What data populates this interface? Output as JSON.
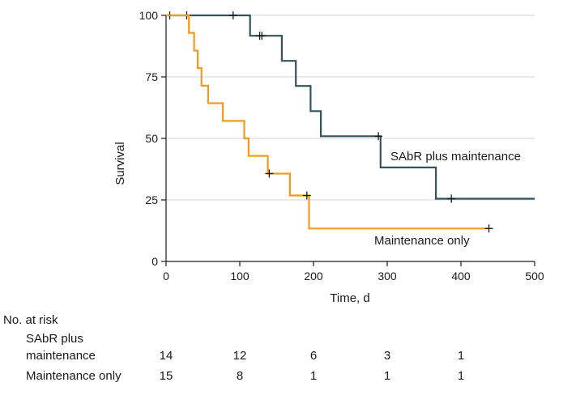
{
  "chart_data": {
    "type": "line",
    "subtype": "kaplan-meier step",
    "xlabel": "Time, d",
    "ylabel": "Survival",
    "xlim": [
      0,
      500
    ],
    "ylim": [
      0,
      100
    ],
    "xticks": [
      "0",
      "100",
      "200",
      "300",
      "400",
      "500"
    ],
    "yticks": [
      "0",
      "25",
      "50",
      "75",
      "100"
    ],
    "grid": "horizontal",
    "series": [
      {
        "name": "SAbR plus maintenance",
        "color": "#35525f",
        "steps": [
          [
            0,
            100
          ],
          [
            114,
            100
          ],
          [
            114,
            91.7
          ],
          [
            157,
            91.7
          ],
          [
            157,
            81.5
          ],
          [
            176,
            81.5
          ],
          [
            176,
            71.3
          ],
          [
            196,
            71.3
          ],
          [
            196,
            61.1
          ],
          [
            210,
            61.1
          ],
          [
            210,
            50.9
          ],
          [
            291,
            50.9
          ],
          [
            291,
            38.2
          ],
          [
            366,
            38.2
          ],
          [
            366,
            25.5
          ],
          [
            500,
            25.5
          ]
        ],
        "censored": [
          [
            5,
            100
          ],
          [
            28,
            100
          ],
          [
            91,
            100
          ],
          [
            127,
            91.7
          ],
          [
            130,
            91.7
          ],
          [
            288,
            50.9
          ],
          [
            387,
            25.5
          ]
        ]
      },
      {
        "name": "Maintenance only",
        "color": "#f59a1c",
        "steps": [
          [
            0,
            100
          ],
          [
            31,
            100
          ],
          [
            31,
            92.9
          ],
          [
            38,
            92.9
          ],
          [
            38,
            85.7
          ],
          [
            43,
            85.7
          ],
          [
            43,
            78.6
          ],
          [
            48,
            78.6
          ],
          [
            48,
            71.4
          ],
          [
            57,
            71.4
          ],
          [
            57,
            64.3
          ],
          [
            77,
            64.3
          ],
          [
            77,
            57.1
          ],
          [
            106,
            57.1
          ],
          [
            106,
            50
          ],
          [
            112,
            50
          ],
          [
            112,
            42.9
          ],
          [
            138,
            42.9
          ],
          [
            138,
            35.7
          ],
          [
            168,
            35.7
          ],
          [
            168,
            26.8
          ],
          [
            194,
            26.8
          ],
          [
            194,
            13.4
          ],
          [
            438,
            13.4
          ]
        ],
        "censored": [
          [
            140,
            35.7
          ],
          [
            191,
            26.8
          ],
          [
            438,
            13.4
          ]
        ]
      }
    ]
  },
  "risk_table": {
    "title": "No. at risk",
    "rows": [
      {
        "label_line1": "SAbR plus",
        "label_line2": "maintenance",
        "values": [
          "14",
          "12",
          "6",
          "3",
          "1"
        ]
      },
      {
        "label": "Maintenance only",
        "values": [
          "15",
          "8",
          "1",
          "1",
          "1"
        ]
      }
    ]
  }
}
